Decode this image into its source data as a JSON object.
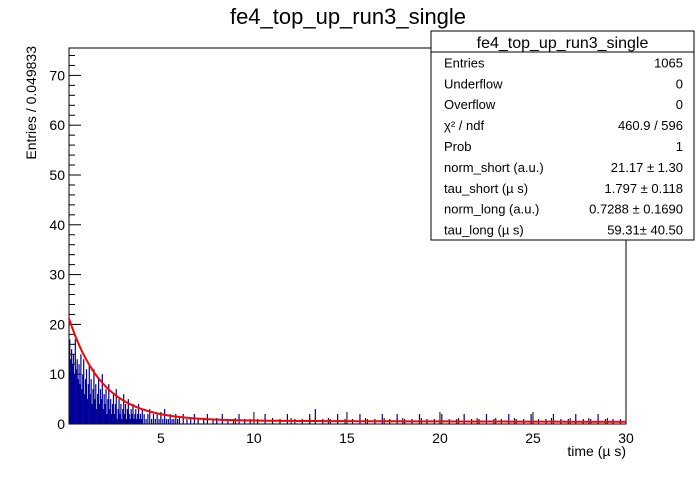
{
  "chart_data": {
    "type": "histogram",
    "title": "fe4_top_up_run3_single",
    "xlabel": "time (µ s)",
    "ylabel": "Entries / 0.049833",
    "xlim": [
      0.06,
      30
    ],
    "ylim": [
      0,
      75.5
    ],
    "x_ticks": [
      5,
      10,
      15,
      20,
      25,
      30
    ],
    "y_ticks": [
      0,
      10,
      20,
      30,
      40,
      50,
      60,
      70
    ],
    "bin_width": 0.049833,
    "grid": false,
    "colors": {
      "histogram": "#000099",
      "fit": "#ff0000",
      "axis": "#000000"
    },
    "histogram_bins": [
      {
        "x": 0.1,
        "y": 17
      },
      {
        "x": 0.15,
        "y": 13
      },
      {
        "x": 0.2,
        "y": 15
      },
      {
        "x": 0.25,
        "y": 12
      },
      {
        "x": 0.3,
        "y": 14
      },
      {
        "x": 0.35,
        "y": 10
      },
      {
        "x": 0.4,
        "y": 17
      },
      {
        "x": 0.45,
        "y": 11
      },
      {
        "x": 0.5,
        "y": 13
      },
      {
        "x": 0.55,
        "y": 9
      },
      {
        "x": 0.6,
        "y": 12
      },
      {
        "x": 0.65,
        "y": 8
      },
      {
        "x": 0.7,
        "y": 14
      },
      {
        "x": 0.75,
        "y": 7
      },
      {
        "x": 0.8,
        "y": 10
      },
      {
        "x": 0.85,
        "y": 13
      },
      {
        "x": 0.9,
        "y": 6
      },
      {
        "x": 0.95,
        "y": 9
      },
      {
        "x": 1.0,
        "y": 11
      },
      {
        "x": 1.05,
        "y": 5
      },
      {
        "x": 1.1,
        "y": 8
      },
      {
        "x": 1.15,
        "y": 12
      },
      {
        "x": 1.2,
        "y": 6
      },
      {
        "x": 1.25,
        "y": 9
      },
      {
        "x": 1.3,
        "y": 4
      },
      {
        "x": 1.35,
        "y": 7
      },
      {
        "x": 1.4,
        "y": 11
      },
      {
        "x": 1.45,
        "y": 5
      },
      {
        "x": 1.5,
        "y": 8
      },
      {
        "x": 1.55,
        "y": 3
      },
      {
        "x": 1.6,
        "y": 6
      },
      {
        "x": 1.65,
        "y": 9
      },
      {
        "x": 1.7,
        "y": 4
      },
      {
        "x": 1.75,
        "y": 7
      },
      {
        "x": 1.8,
        "y": 5
      },
      {
        "x": 1.85,
        "y": 10
      },
      {
        "x": 1.9,
        "y": 3
      },
      {
        "x": 1.95,
        "y": 6
      },
      {
        "x": 2.0,
        "y": 4
      },
      {
        "x": 2.05,
        "y": 7
      },
      {
        "x": 2.1,
        "y": 2
      },
      {
        "x": 2.15,
        "y": 5
      },
      {
        "x": 2.2,
        "y": 8
      },
      {
        "x": 2.25,
        "y": 3
      },
      {
        "x": 2.3,
        "y": 5
      },
      {
        "x": 2.35,
        "y": 2
      },
      {
        "x": 2.4,
        "y": 4
      },
      {
        "x": 2.45,
        "y": 6
      },
      {
        "x": 2.5,
        "y": 2
      },
      {
        "x": 2.55,
        "y": 4
      },
      {
        "x": 2.6,
        "y": 7
      },
      {
        "x": 2.65,
        "y": 1
      },
      {
        "x": 2.7,
        "y": 3
      },
      {
        "x": 2.75,
        "y": 5
      },
      {
        "x": 2.8,
        "y": 2
      },
      {
        "x": 2.85,
        "y": 4
      },
      {
        "x": 2.9,
        "y": 1
      },
      {
        "x": 2.95,
        "y": 3
      },
      {
        "x": 3.0,
        "y": 6
      },
      {
        "x": 3.05,
        "y": 2
      },
      {
        "x": 3.1,
        "y": 4
      },
      {
        "x": 3.15,
        "y": 1
      },
      {
        "x": 3.2,
        "y": 3
      },
      {
        "x": 3.25,
        "y": 5
      },
      {
        "x": 3.3,
        "y": 2
      },
      {
        "x": 3.35,
        "y": 1
      },
      {
        "x": 3.4,
        "y": 3
      },
      {
        "x": 3.45,
        "y": 2
      },
      {
        "x": 3.5,
        "y": 4
      },
      {
        "x": 3.55,
        "y": 1
      },
      {
        "x": 3.6,
        "y": 2
      },
      {
        "x": 3.65,
        "y": 3
      },
      {
        "x": 3.7,
        "y": 1
      },
      {
        "x": 3.75,
        "y": 2
      },
      {
        "x": 3.8,
        "y": 4
      },
      {
        "x": 3.85,
        "y": 1
      },
      {
        "x": 3.9,
        "y": 2
      },
      {
        "x": 3.95,
        "y": 1
      },
      {
        "x": 4.0,
        "y": 3
      },
      {
        "x": 4.1,
        "y": 2
      },
      {
        "x": 4.2,
        "y": 1
      },
      {
        "x": 4.3,
        "y": 2
      },
      {
        "x": 4.4,
        "y": 3
      },
      {
        "x": 4.5,
        "y": 1
      },
      {
        "x": 4.6,
        "y": 2
      },
      {
        "x": 4.7,
        "y": 1
      },
      {
        "x": 4.8,
        "y": 2
      },
      {
        "x": 4.9,
        "y": 1
      },
      {
        "x": 5.0,
        "y": 2
      },
      {
        "x": 5.1,
        "y": 1
      },
      {
        "x": 5.2,
        "y": 3
      },
      {
        "x": 5.3,
        "y": 1
      },
      {
        "x": 5.4,
        "y": 1
      },
      {
        "x": 5.5,
        "y": 2
      },
      {
        "x": 5.6,
        "y": 1
      },
      {
        "x": 5.7,
        "y": 1
      },
      {
        "x": 5.8,
        "y": 2
      },
      {
        "x": 5.9,
        "y": 1
      },
      {
        "x": 6.0,
        "y": 1
      },
      {
        "x": 6.2,
        "y": 2
      },
      {
        "x": 6.4,
        "y": 1
      },
      {
        "x": 6.6,
        "y": 1
      },
      {
        "x": 6.8,
        "y": 2
      },
      {
        "x": 7.0,
        "y": 1
      },
      {
        "x": 7.3,
        "y": 1
      },
      {
        "x": 7.5,
        "y": 2
      },
      {
        "x": 7.8,
        "y": 1
      },
      {
        "x": 8.0,
        "y": 1
      },
      {
        "x": 8.3,
        "y": 2
      },
      {
        "x": 8.6,
        "y": 1
      },
      {
        "x": 8.9,
        "y": 1
      },
      {
        "x": 9.2,
        "y": 2
      },
      {
        "x": 9.5,
        "y": 1
      },
      {
        "x": 9.8,
        "y": 1
      },
      {
        "x": 10.2,
        "y": 1
      },
      {
        "x": 10.6,
        "y": 2
      },
      {
        "x": 11.0,
        "y": 1
      },
      {
        "x": 11.4,
        "y": 1
      },
      {
        "x": 11.8,
        "y": 2
      },
      {
        "x": 12.2,
        "y": 1
      },
      {
        "x": 12.6,
        "y": 1
      },
      {
        "x": 13.0,
        "y": 2
      },
      {
        "x": 13.3,
        "y": 3
      },
      {
        "x": 13.7,
        "y": 1
      },
      {
        "x": 14.1,
        "y": 1
      },
      {
        "x": 14.5,
        "y": 2
      },
      {
        "x": 14.9,
        "y": 1
      },
      {
        "x": 15.3,
        "y": 1
      },
      {
        "x": 15.7,
        "y": 2
      },
      {
        "x": 16.1,
        "y": 1
      },
      {
        "x": 16.5,
        "y": 1
      },
      {
        "x": 16.9,
        "y": 2
      },
      {
        "x": 17.3,
        "y": 1
      },
      {
        "x": 17.7,
        "y": 2
      },
      {
        "x": 18.1,
        "y": 1
      },
      {
        "x": 18.5,
        "y": 1
      },
      {
        "x": 18.9,
        "y": 2
      },
      {
        "x": 19.3,
        "y": 1
      },
      {
        "x": 19.7,
        "y": 1
      },
      {
        "x": 20.1,
        "y": 2
      },
      {
        "x": 20.5,
        "y": 1
      },
      {
        "x": 20.9,
        "y": 1
      },
      {
        "x": 21.3,
        "y": 2
      },
      {
        "x": 21.7,
        "y": 1
      },
      {
        "x": 22.1,
        "y": 1
      },
      {
        "x": 22.5,
        "y": 2
      },
      {
        "x": 22.9,
        "y": 1
      },
      {
        "x": 23.3,
        "y": 1
      },
      {
        "x": 23.7,
        "y": 2
      },
      {
        "x": 24.1,
        "y": 1
      },
      {
        "x": 24.5,
        "y": 1
      },
      {
        "x": 24.9,
        "y": 2
      },
      {
        "x": 25.3,
        "y": 1
      },
      {
        "x": 25.7,
        "y": 1
      },
      {
        "x": 26.1,
        "y": 2
      },
      {
        "x": 26.5,
        "y": 1
      },
      {
        "x": 26.9,
        "y": 1
      },
      {
        "x": 27.3,
        "y": 2
      },
      {
        "x": 27.7,
        "y": 1
      },
      {
        "x": 28.1,
        "y": 1
      },
      {
        "x": 28.5,
        "y": 2
      },
      {
        "x": 28.9,
        "y": 1
      },
      {
        "x": 29.3,
        "y": 1
      },
      {
        "x": 29.7,
        "y": 1
      }
    ],
    "fit_function": {
      "name": "two-exponential fit",
      "norm_short": 21.17,
      "tau_short": 1.797,
      "norm_long": 0.7288,
      "tau_long": 59.31
    },
    "stats_box": {
      "title": "fe4_top_up_run3_single",
      "rows": [
        {
          "label": "Entries",
          "value": "1065"
        },
        {
          "label": "Underflow",
          "value": "0"
        },
        {
          "label": "Overflow",
          "value": "0"
        },
        {
          "label": "χ² / ndf",
          "value": "460.9 / 596"
        },
        {
          "label": "Prob",
          "value": "1"
        },
        {
          "label": "norm_short (a.u.)",
          "value": "21.17 ± 1.30"
        },
        {
          "label": "tau_short (µ s)",
          "value": "1.797 ± 0.118"
        },
        {
          "label": "norm_long (a.u.)",
          "value": "0.7288 ± 0.1690"
        },
        {
          "label": "tau_long (µ s)",
          "value": "59.31± 40.50"
        }
      ]
    }
  }
}
